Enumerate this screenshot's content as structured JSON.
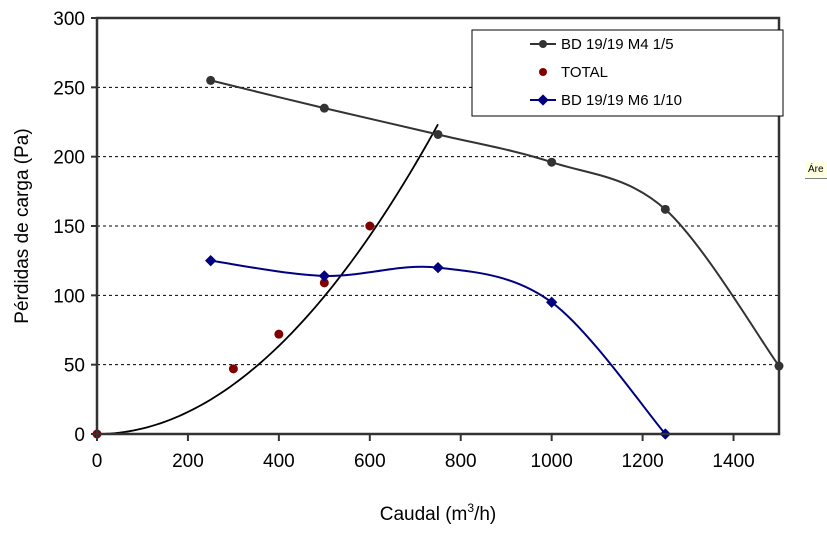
{
  "chart_data": {
    "type": "line",
    "title": "",
    "xlabel": "Caudal (m",
    "xlabel_sup": "3",
    "xlabel_tail": "/h)",
    "ylabel": "Pérdidas de carga (Pa)",
    "xlim": [
      0,
      1500
    ],
    "ylim": [
      0,
      300
    ],
    "xticks": [
      0,
      200,
      400,
      600,
      800,
      1000,
      1200,
      1400
    ],
    "yticks": [
      0,
      50,
      100,
      150,
      200,
      250,
      300
    ],
    "xtick_labels": [
      "0",
      "200",
      "400",
      "600",
      "800",
      "1000",
      "1200",
      "1400"
    ],
    "ytick_labels": [
      "0",
      "50",
      "100",
      "150",
      "200",
      "250",
      "300"
    ],
    "grid": {
      "y": true,
      "style": "dashed",
      "x": false
    },
    "legend_position": "top-right",
    "series": [
      {
        "name": "BD 19/19 M4 1/5",
        "color": "#333333",
        "marker": "circle",
        "line": "smooth",
        "x": [
          250,
          500,
          750,
          1000,
          1250,
          1500
        ],
        "y": [
          255,
          235,
          216,
          196,
          162,
          49
        ]
      },
      {
        "name": "TOTAL",
        "color": "#800000",
        "marker": "circle",
        "line": "none",
        "x": [
          0,
          300,
          400,
          500,
          600
        ],
        "y": [
          0,
          47,
          72,
          109,
          150
        ],
        "trendline": {
          "type": "polynomial-2",
          "color": "#000000",
          "x_range": [
            0,
            750
          ],
          "coef_a": 0.000397
        }
      },
      {
        "name": "BD 19/19 M6 1/10",
        "color": "#000080",
        "marker": "diamond",
        "line": "smooth",
        "x": [
          250,
          500,
          750,
          1000,
          1250
        ],
        "y": [
          125,
          114,
          120,
          95,
          0
        ]
      }
    ]
  },
  "overlay": {
    "comment_tooltip": "Áre"
  }
}
